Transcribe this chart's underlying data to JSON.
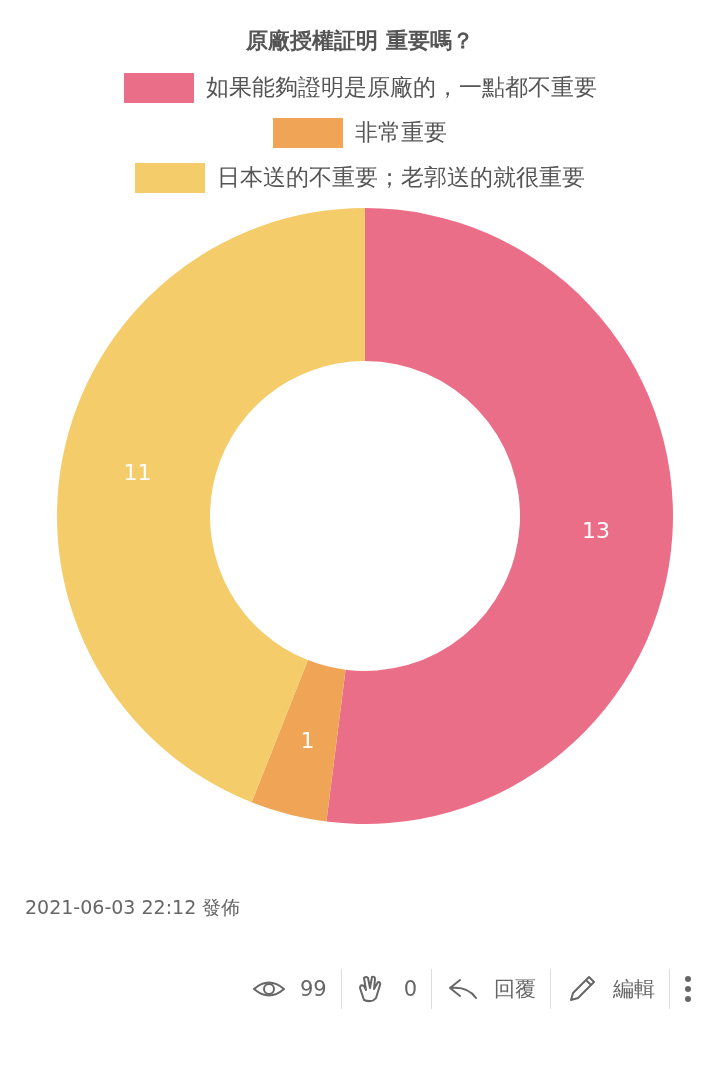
{
  "chart_data": {
    "type": "donut",
    "title": "原廠授權証明 重要嗎？",
    "categories": [
      "如果能夠證明是原廠的，一點都不重要",
      "非常重要",
      "日本送的不重要；老郭送的就很重要"
    ],
    "values": [
      13,
      1,
      11
    ],
    "colors": [
      "#eb6e88",
      "#f0a456",
      "#f4cd6a"
    ],
    "data_labels": true,
    "legend": "top",
    "annotations": [
      "2021-06-03 22:12 發佈",
      "99",
      "0",
      "回覆",
      "編輯"
    ]
  }
}
